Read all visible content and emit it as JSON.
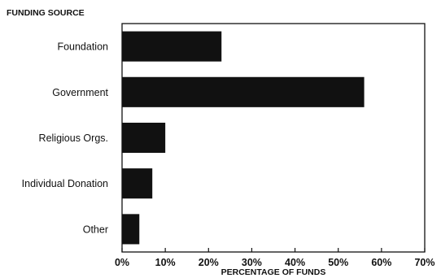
{
  "chart_data": {
    "type": "bar",
    "orientation": "horizontal",
    "y_axis_title": "FUNDING SOURCE",
    "xlabel": "PERCENTAGE OF FUNDS",
    "categories": [
      "Foundation",
      "Government",
      "Religious Orgs.",
      "Individual Donation",
      "Other"
    ],
    "values": [
      23,
      56,
      10,
      7,
      4
    ],
    "xlim": [
      0,
      70
    ],
    "x_ticks": [
      "0%",
      "10%",
      "20%",
      "30%",
      "40%",
      "50%",
      "60%",
      "70%"
    ],
    "grid": false,
    "legend": false,
    "bar_color": "#111111"
  }
}
